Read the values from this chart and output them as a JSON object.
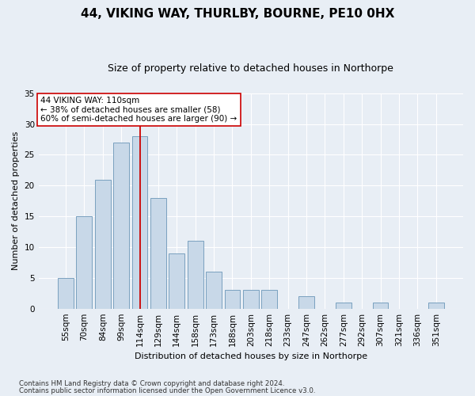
{
  "title": "44, VIKING WAY, THURLBY, BOURNE, PE10 0HX",
  "subtitle": "Size of property relative to detached houses in Northorpe",
  "xlabel": "Distribution of detached houses by size in Northorpe",
  "ylabel": "Number of detached properties",
  "categories": [
    "55sqm",
    "70sqm",
    "84sqm",
    "99sqm",
    "114sqm",
    "129sqm",
    "144sqm",
    "158sqm",
    "173sqm",
    "188sqm",
    "203sqm",
    "218sqm",
    "233sqm",
    "247sqm",
    "262sqm",
    "277sqm",
    "292sqm",
    "307sqm",
    "321sqm",
    "336sqm",
    "351sqm"
  ],
  "values": [
    5,
    15,
    21,
    27,
    28,
    18,
    9,
    11,
    6,
    3,
    3,
    3,
    0,
    2,
    0,
    1,
    0,
    1,
    0,
    0,
    1
  ],
  "bar_color": "#c8d8e8",
  "bar_edge_color": "#7aa0bf",
  "vline_index": 4,
  "vline_color": "#cc0000",
  "ylim": [
    0,
    35
  ],
  "yticks": [
    0,
    5,
    10,
    15,
    20,
    25,
    30,
    35
  ],
  "annotation_text": "44 VIKING WAY: 110sqm\n← 38% of detached houses are smaller (58)\n60% of semi-detached houses are larger (90) →",
  "annotation_box_color": "#ffffff",
  "annotation_box_edge": "#cc0000",
  "footer_line1": "Contains HM Land Registry data © Crown copyright and database right 2024.",
  "footer_line2": "Contains public sector information licensed under the Open Government Licence v3.0.",
  "background_color": "#e8eef5",
  "plot_bg_color": "#e8eef5",
  "grid_color": "#ffffff",
  "title_fontsize": 11,
  "subtitle_fontsize": 9,
  "ylabel_fontsize": 8,
  "xlabel_fontsize": 8,
  "tick_fontsize": 7.5,
  "annot_fontsize": 7.5
}
